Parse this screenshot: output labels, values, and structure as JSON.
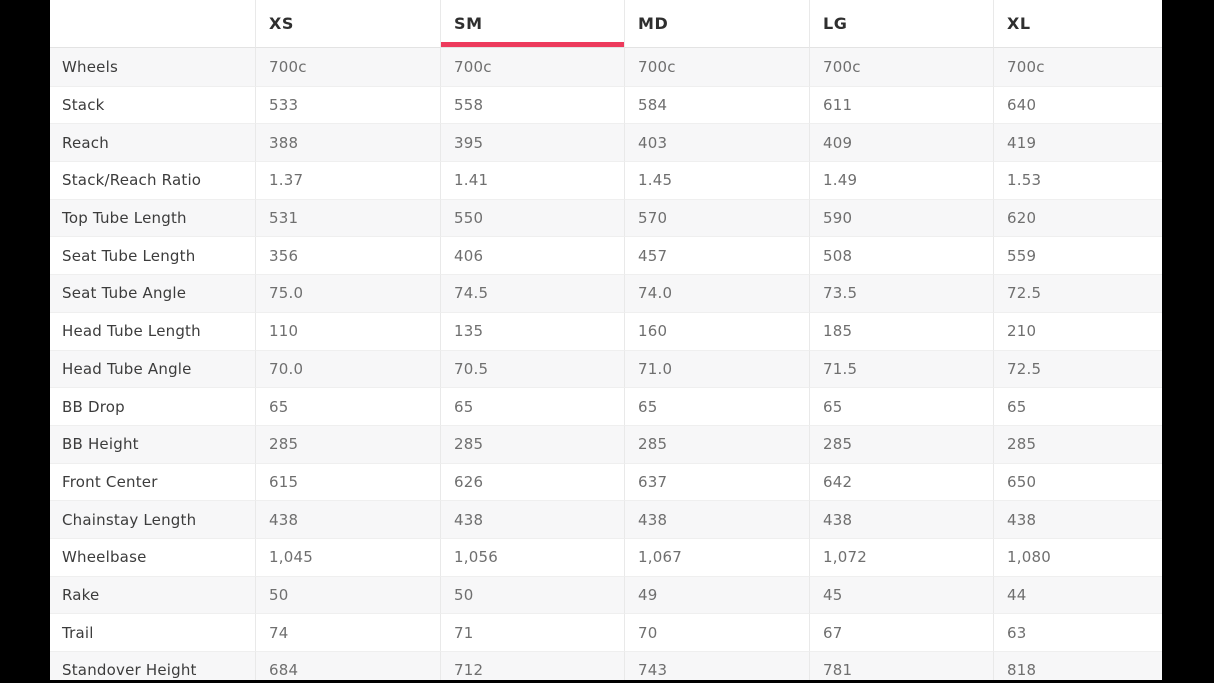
{
  "page": {
    "background_color": "#000000",
    "card_background_color": "#ffffff"
  },
  "geometry_table": {
    "accent_color": "#ed3a5c",
    "stripe_color": "#f7f7f8",
    "selected_size": "SM",
    "size_tabs": [
      {
        "label": "XS",
        "selected": false
      },
      {
        "label": "SM",
        "selected": true
      },
      {
        "label": "MD",
        "selected": false
      },
      {
        "label": "LG",
        "selected": false
      },
      {
        "label": "XL",
        "selected": false
      }
    ],
    "rows": [
      {
        "label": "Wheels",
        "values": [
          "700c",
          "700c",
          "700c",
          "700c",
          "700c"
        ]
      },
      {
        "label": "Stack",
        "values": [
          "533",
          "558",
          "584",
          "611",
          "640"
        ]
      },
      {
        "label": "Reach",
        "values": [
          "388",
          "395",
          "403",
          "409",
          "419"
        ]
      },
      {
        "label": "Stack/Reach Ratio",
        "values": [
          "1.37",
          "1.41",
          "1.45",
          "1.49",
          "1.53"
        ]
      },
      {
        "label": "Top Tube Length",
        "values": [
          "531",
          "550",
          "570",
          "590",
          "620"
        ]
      },
      {
        "label": "Seat Tube Length",
        "values": [
          "356",
          "406",
          "457",
          "508",
          "559"
        ]
      },
      {
        "label": "Seat Tube Angle",
        "values": [
          "75.0",
          "74.5",
          "74.0",
          "73.5",
          "72.5"
        ]
      },
      {
        "label": "Head Tube Length",
        "values": [
          "110",
          "135",
          "160",
          "185",
          "210"
        ]
      },
      {
        "label": "Head Tube Angle",
        "values": [
          "70.0",
          "70.5",
          "71.0",
          "71.5",
          "72.5"
        ]
      },
      {
        "label": "BB Drop",
        "values": [
          "65",
          "65",
          "65",
          "65",
          "65"
        ]
      },
      {
        "label": "BB Height",
        "values": [
          "285",
          "285",
          "285",
          "285",
          "285"
        ]
      },
      {
        "label": "Front Center",
        "values": [
          "615",
          "626",
          "637",
          "642",
          "650"
        ]
      },
      {
        "label": "Chainstay Length",
        "values": [
          "438",
          "438",
          "438",
          "438",
          "438"
        ]
      },
      {
        "label": "Wheelbase",
        "values": [
          "1,045",
          "1,056",
          "1,067",
          "1,072",
          "1,080"
        ]
      },
      {
        "label": "Rake",
        "values": [
          "50",
          "50",
          "49",
          "45",
          "44"
        ]
      },
      {
        "label": "Trail",
        "values": [
          "74",
          "71",
          "70",
          "67",
          "63"
        ]
      },
      {
        "label": "Standover Height",
        "values": [
          "684",
          "712",
          "743",
          "781",
          "818"
        ]
      }
    ]
  }
}
